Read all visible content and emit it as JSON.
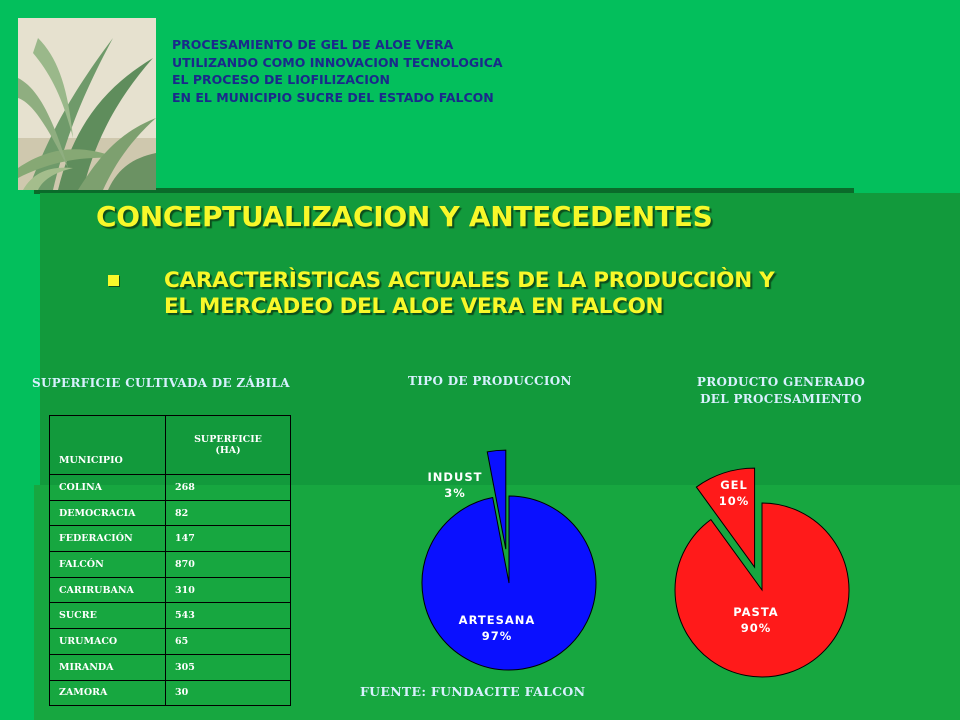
{
  "header": {
    "lines": [
      "PROCESAMIENTO DE GEL DE ALOE VERA",
      "UTILIZANDO COMO INNOVACION TECNOLOGICA",
      "EL PROCESO DE LIOFILIZACION",
      "EN EL MUNICIPIO SUCRE DEL ESTADO FALCON"
    ]
  },
  "section_title": "CONCEPTUALIZACION Y ANTECEDENTES",
  "bullet": {
    "line1": "CARACTERÌSTICAS ACTUALES DE LA PRODUCCIÒN Y",
    "line2": "EL MERCADEO DEL ALOE VERA EN FALCON"
  },
  "source": "FUENTE: FUNDACITE FALCON",
  "colors": {
    "background": "#03bf5c",
    "panel": "#129a3c",
    "title_yellow": "#f8f82a",
    "pie1_color": "#0a10ff",
    "pie2_color": "#ff1a1a"
  },
  "chart_data": [
    {
      "type": "table",
      "title": "SUPERFICIE CULTIVADA DE ZÁBILA",
      "columns": [
        "MUNICIPIO",
        "SUPERFICIE (HA)"
      ],
      "column_lines": {
        "c2_line1": "SUPERFICIE",
        "c2_line2": "(HA)"
      },
      "rows": [
        [
          "COLINA",
          "268"
        ],
        [
          "DEMOCRACIA",
          "82"
        ],
        [
          "FEDERACIÓN",
          "147"
        ],
        [
          "FALCÓN",
          "870"
        ],
        [
          "CARIRUBANA",
          "310"
        ],
        [
          "SUCRE",
          "543"
        ],
        [
          "URUMACO",
          "65"
        ],
        [
          "MIRANDA",
          "305"
        ],
        [
          "ZAMORA",
          "30"
        ]
      ]
    },
    {
      "type": "pie",
      "title": "TIPO DE PRODUCCION",
      "slices": [
        {
          "label": "ARTESANA",
          "value": 97,
          "value_label": "97%"
        },
        {
          "label": "INDUST",
          "value": 3,
          "value_label": "3%"
        }
      ],
      "exploded": "INDUST"
    },
    {
      "type": "pie",
      "title_lines": [
        "PRODUCTO GENERADO",
        "DEL PROCESAMIENTO"
      ],
      "slices": [
        {
          "label": "PASTA",
          "value": 90,
          "value_label": "90%"
        },
        {
          "label": "GEL",
          "value": 10,
          "value_label": "10%"
        }
      ],
      "exploded": "GEL"
    }
  ]
}
